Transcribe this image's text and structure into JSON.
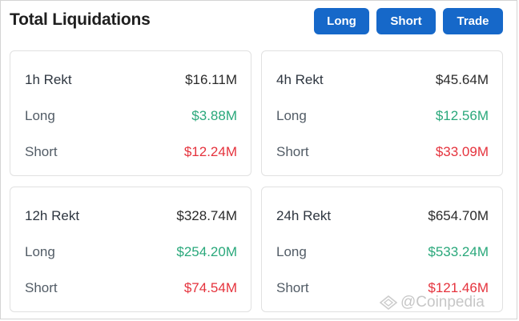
{
  "header": {
    "title": "Total Liquidations",
    "buttons": {
      "long": "Long",
      "short": "Short",
      "trade": "Trade"
    }
  },
  "cards": [
    {
      "period": "1h Rekt",
      "total": "$16.11M",
      "long_label": "Long",
      "long": "$3.88M",
      "short_label": "Short",
      "short": "$12.24M"
    },
    {
      "period": "4h Rekt",
      "total": "$45.64M",
      "long_label": "Long",
      "long": "$12.56M",
      "short_label": "Short",
      "short": "$33.09M"
    },
    {
      "period": "12h Rekt",
      "total": "$328.74M",
      "long_label": "Long",
      "long": "$254.20M",
      "short_label": "Short",
      "short": "$74.54M"
    },
    {
      "period": "24h Rekt",
      "total": "$654.70M",
      "long_label": "Long",
      "long": "$533.24M",
      "short_label": "Short",
      "short": "$121.46M"
    }
  ],
  "watermark": "@Coinpedia",
  "colors": {
    "button": "#1668c9",
    "long": "#2aa87b",
    "short": "#e5333d"
  }
}
